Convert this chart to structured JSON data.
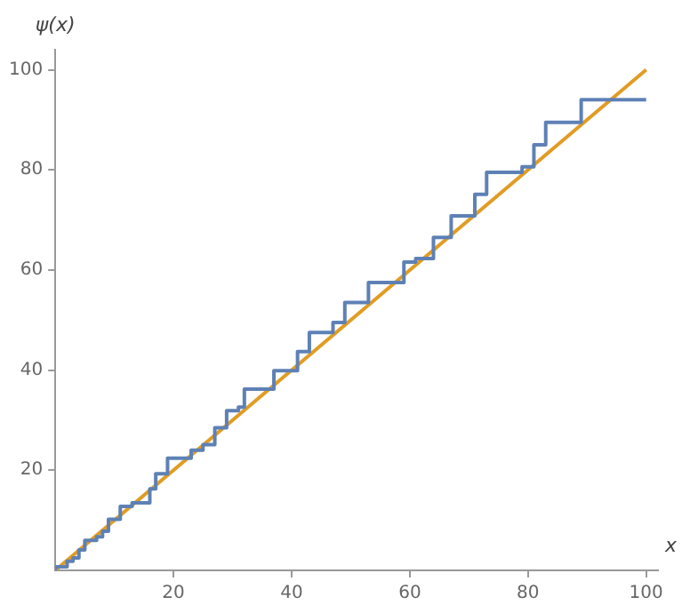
{
  "chart_data": {
    "type": "step",
    "xlabel": "x",
    "ylabel": "ψ(x)",
    "xlim": [
      0,
      102
    ],
    "ylim": [
      0,
      104
    ],
    "xticks": [
      20,
      40,
      60,
      80,
      100
    ],
    "yticks": [
      20,
      40,
      60,
      80,
      100
    ],
    "grid": false,
    "legend": false,
    "series": [
      {
        "type": "step",
        "color": "#5e81b5",
        "x": [
          0,
          2,
          3,
          4,
          5,
          7,
          8,
          9,
          11,
          13,
          16,
          17,
          19,
          23,
          25,
          27,
          29,
          31,
          32,
          37,
          41,
          43,
          47,
          49,
          53,
          59,
          61,
          64,
          67,
          71,
          73,
          79,
          81,
          83,
          89,
          97,
          100
        ],
        "values": [
          0,
          0.7,
          1.8,
          2.5,
          4.1,
          6.0,
          6.7,
          7.8,
          10.2,
          12.8,
          13.5,
          16.3,
          19.3,
          22.4,
          24.0,
          25.1,
          28.5,
          31.9,
          32.6,
          36.2,
          39.9,
          43.7,
          47.5,
          49.5,
          53.5,
          57.5,
          61.6,
          62.3,
          66.5,
          70.8,
          75.1,
          79.5,
          80.6,
          85.0,
          89.5,
          94.0,
          94.0
        ]
      },
      {
        "type": "line",
        "color": "#e19c24",
        "x": [
          0,
          100
        ],
        "values": [
          0,
          100
        ]
      }
    ]
  }
}
